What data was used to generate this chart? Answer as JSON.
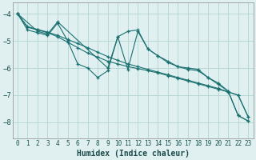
{
  "bg_color": "#e0f0f0",
  "grid_color": "#b8d8d8",
  "line_color": "#1a7070",
  "xlabel": "Humidex (Indice chaleur)",
  "xlim": [
    -0.5,
    23.5
  ],
  "ylim": [
    -8.6,
    -3.6
  ],
  "yticks": [
    -8,
    -7,
    -6,
    -5,
    -4
  ],
  "xticks": [
    0,
    1,
    2,
    3,
    4,
    5,
    6,
    7,
    8,
    9,
    10,
    11,
    12,
    13,
    14,
    15,
    16,
    17,
    18,
    19,
    20,
    21,
    22,
    23
  ],
  "series": [
    {
      "x": [
        0,
        1,
        2,
        3,
        4,
        5,
        6,
        7,
        8,
        9,
        10,
        11,
        12,
        13,
        14,
        15,
        16,
        17,
        18,
        19,
        20,
        21,
        22,
        23
      ],
      "y": [
        -4.0,
        -4.6,
        -4.7,
        -4.8,
        -4.35,
        -5.0,
        -5.85,
        -6.0,
        -6.35,
        -6.1,
        -4.85,
        -6.05,
        -4.65,
        -5.3,
        -5.55,
        -5.8,
        -5.95,
        -6.0,
        -6.05,
        -6.35,
        -6.6,
        -6.85,
        -7.75,
        -7.95
      ]
    },
    {
      "x": [
        0,
        2,
        3,
        4,
        9,
        10,
        11,
        12,
        13,
        14,
        15,
        16,
        17,
        18,
        19,
        20,
        21,
        22,
        23
      ],
      "y": [
        -4.0,
        -4.65,
        -4.75,
        -4.3,
        -6.0,
        -4.85,
        -4.65,
        -4.6,
        -5.3,
        -5.55,
        -5.75,
        -5.95,
        -6.05,
        -6.1,
        -6.35,
        -6.55,
        -6.85,
        -7.75,
        -7.95
      ]
    },
    {
      "x": [
        0,
        1,
        2,
        3,
        4,
        5,
        6,
        7,
        8,
        9,
        10,
        11,
        12,
        13,
        14,
        15,
        16,
        17,
        18,
        19,
        20,
        21,
        22,
        23
      ],
      "y": [
        -4.0,
        -4.5,
        -4.6,
        -4.7,
        -4.85,
        -5.05,
        -5.25,
        -5.45,
        -5.6,
        -5.75,
        -5.85,
        -5.95,
        -6.02,
        -6.1,
        -6.18,
        -6.28,
        -6.38,
        -6.48,
        -6.58,
        -6.68,
        -6.78,
        -6.88,
        -7.0,
        -7.8
      ]
    },
    {
      "x": [
        0,
        1,
        2,
        3,
        4,
        5,
        6,
        7,
        8,
        9,
        10,
        11,
        12,
        13,
        14,
        15,
        16,
        17,
        18,
        19,
        20,
        21,
        22,
        23
      ],
      "y": [
        -4.0,
        -4.48,
        -4.58,
        -4.68,
        -4.8,
        -4.95,
        -5.1,
        -5.25,
        -5.42,
        -5.58,
        -5.72,
        -5.85,
        -5.95,
        -6.05,
        -6.15,
        -6.25,
        -6.35,
        -6.45,
        -6.55,
        -6.65,
        -6.75,
        -6.88,
        -7.0,
        -7.8
      ]
    }
  ]
}
